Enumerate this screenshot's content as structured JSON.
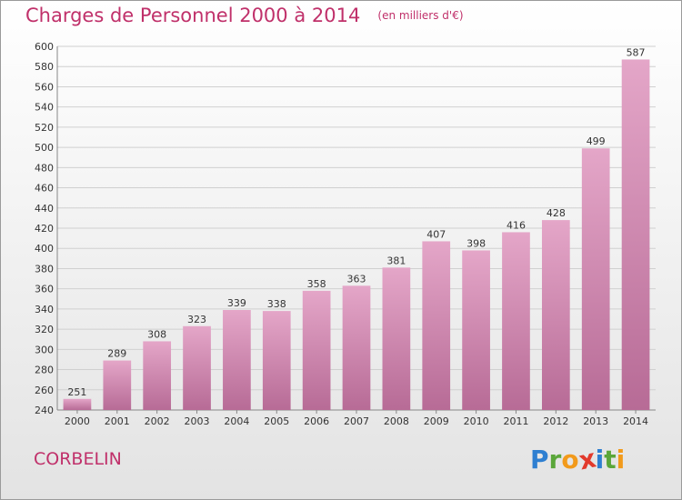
{
  "chart_data": {
    "type": "bar",
    "title": "Charges de Personnel 2000 à 2014",
    "subtitle": "(en milliers d'€)",
    "categories": [
      "2000",
      "2001",
      "2002",
      "2003",
      "2004",
      "2005",
      "2006",
      "2007",
      "2008",
      "2009",
      "2010",
      "2011",
      "2012",
      "2013",
      "2014"
    ],
    "values": [
      251,
      289,
      308,
      323,
      339,
      338,
      358,
      363,
      381,
      407,
      398,
      416,
      428,
      499,
      587
    ],
    "ylim": [
      240,
      600
    ],
    "yticks": [
      240,
      260,
      280,
      300,
      320,
      340,
      360,
      380,
      400,
      420,
      440,
      460,
      480,
      500,
      520,
      540,
      560,
      580,
      600
    ],
    "grid": true,
    "bar_color": "#d98fb6"
  },
  "footer": {
    "town": "CORBELIN",
    "logo_letters": [
      {
        "ch": "P",
        "color": "#2e7fd1"
      },
      {
        "ch": "r",
        "color": "#5aa63a"
      },
      {
        "ch": "o",
        "color": "#f29a1b"
      },
      {
        "ch": "x",
        "color": "#e23a2c"
      },
      {
        "ch": "i",
        "color": "#2e7fd1"
      },
      {
        "ch": "t",
        "color": "#5aa63a"
      },
      {
        "ch": "i",
        "color": "#f29a1b"
      }
    ]
  }
}
